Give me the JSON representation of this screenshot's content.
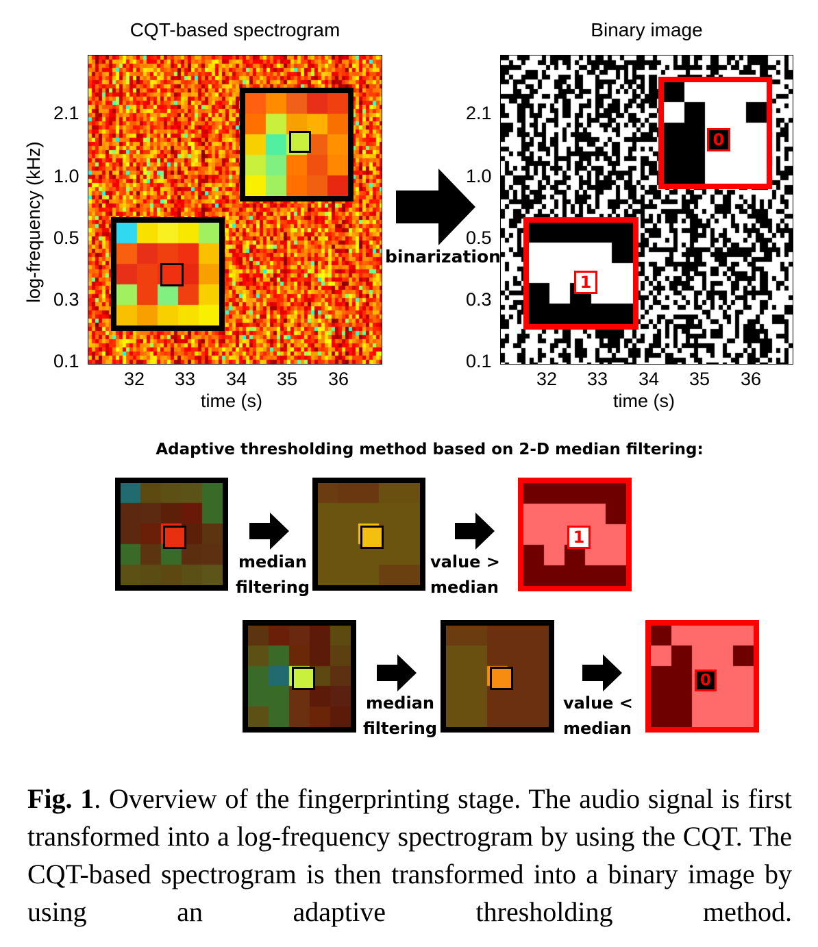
{
  "left_plot": {
    "title": "CQT-based spectrogram",
    "ylabel": "log-frequency (kHz)",
    "xlabel": "time (s)",
    "yticks": [
      "2.1",
      "1.0",
      "0.5",
      "0.3",
      "0.1"
    ],
    "xticks": [
      "32",
      "33",
      "34",
      "35",
      "36"
    ]
  },
  "right_plot": {
    "title": "Binary image",
    "xlabel": "time (s)",
    "yticks": [
      "2.1",
      "1.0",
      "0.5",
      "0.3",
      "0.1"
    ],
    "xticks": [
      "32",
      "33",
      "34",
      "35",
      "36"
    ],
    "box_one_value": "1",
    "box_zero_value": "0"
  },
  "binarization_label": "binarization",
  "filtering_title": "Adaptive thresholding method based on 2-D median filtering:",
  "row1": {
    "step1": [
      "median",
      "filtering"
    ],
    "step2": [
      "value >",
      "median"
    ],
    "result_value": "1"
  },
  "row2": {
    "step1": [
      "median",
      "filtering"
    ],
    "step2": [
      "value <",
      "median"
    ],
    "result_value": "0"
  },
  "caption": {
    "label": "Fig. 1",
    "text": ". Overview of the fingerprinting stage. The audio signal is first transformed into a log-frequency spectrogram by using the CQT. The CQT-based spectrogram is then transformed into a binary image by using an adaptive thresholding method."
  },
  "colors": {
    "red_box": "#ff0000",
    "dark_red": "#6f0000",
    "pink": "#ff6b6b",
    "black_box": "#000000"
  }
}
